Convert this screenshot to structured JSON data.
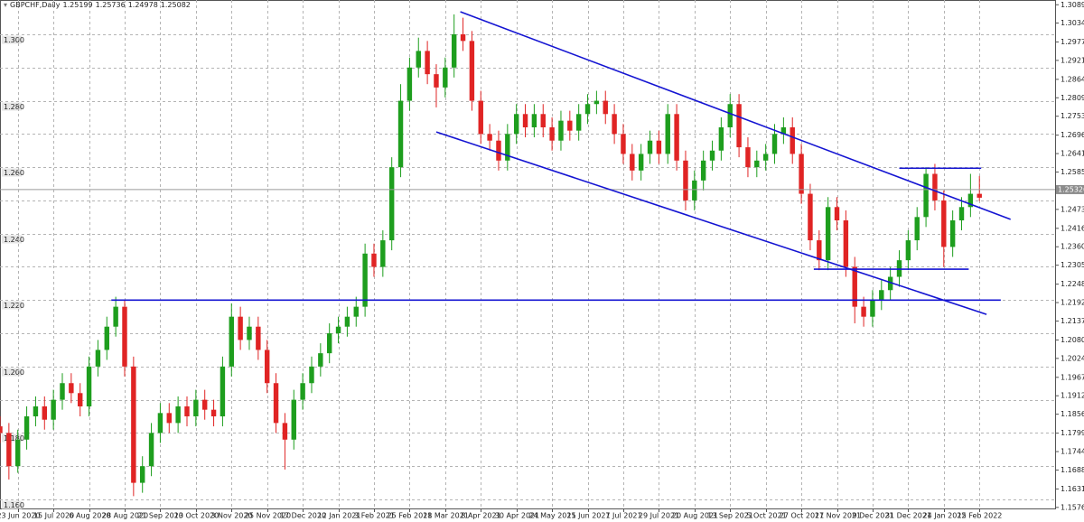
{
  "chart_data": {
    "type": "candlestick",
    "title": "GBPCHF,Daily",
    "last_ohlc": [
      1.25199,
      1.25736,
      1.24978,
      1.25082
    ],
    "open": [
      1.182,
      1.18,
      1.17,
      1.178,
      1.185,
      1.188,
      1.184,
      1.19,
      1.195,
      1.192,
      1.188,
      1.2,
      1.205,
      1.212,
      1.218,
      1.2,
      1.165,
      1.17,
      1.18,
      1.186,
      1.183,
      1.188,
      1.185,
      1.19,
      1.187,
      1.185,
      1.2,
      1.215,
      1.208,
      1.212,
      1.205,
      1.195,
      1.183,
      1.178,
      1.19,
      1.195,
      1.2,
      1.204,
      1.21,
      1.212,
      1.215,
      1.218,
      1.234,
      1.23,
      1.238,
      1.26,
      1.28,
      1.29,
      1.295,
      1.288,
      1.284,
      1.29,
      1.3,
      1.298,
      1.28,
      1.27,
      1.268,
      1.262,
      1.27,
      1.276,
      1.272,
      1.276,
      1.272,
      1.268,
      1.274,
      1.271,
      1.276,
      1.279,
      1.28,
      1.276,
      1.27,
      1.264,
      1.259,
      1.264,
      1.268,
      1.264,
      1.276,
      1.262,
      1.25,
      1.256,
      1.262,
      1.265,
      1.272,
      1.279,
      1.266,
      1.26,
      1.262,
      1.264,
      1.27,
      1.272,
      1.264,
      1.252,
      1.238,
      1.232,
      1.248,
      1.244,
      1.23,
      1.218,
      1.215,
      1.22,
      1.223,
      1.227,
      1.232,
      1.238,
      1.245,
      1.258,
      1.25,
      1.236,
      1.244,
      1.248,
      1.25199
    ],
    "high": [
      1.185,
      1.183,
      1.181,
      1.188,
      1.191,
      1.191,
      1.193,
      1.198,
      1.198,
      1.195,
      1.203,
      1.208,
      1.215,
      1.221,
      1.22,
      1.203,
      1.173,
      1.183,
      1.189,
      1.189,
      1.191,
      1.191,
      1.193,
      1.193,
      1.19,
      1.203,
      1.219,
      1.218,
      1.215,
      1.215,
      1.208,
      1.198,
      1.186,
      1.193,
      1.198,
      1.203,
      1.207,
      1.213,
      1.215,
      1.218,
      1.221,
      1.237,
      1.237,
      1.241,
      1.263,
      1.285,
      1.293,
      1.299,
      1.298,
      1.291,
      1.293,
      1.306,
      1.305,
      1.301,
      1.283,
      1.273,
      1.271,
      1.273,
      1.279,
      1.279,
      1.279,
      1.279,
      1.275,
      1.277,
      1.277,
      1.279,
      1.282,
      1.283,
      1.283,
      1.279,
      1.273,
      1.267,
      1.267,
      1.271,
      1.271,
      1.279,
      1.279,
      1.265,
      1.259,
      1.265,
      1.268,
      1.275,
      1.282,
      1.282,
      1.269,
      1.265,
      1.267,
      1.273,
      1.275,
      1.275,
      1.267,
      1.255,
      1.241,
      1.251,
      1.251,
      1.247,
      1.233,
      1.221,
      1.223,
      1.226,
      1.23,
      1.235,
      1.241,
      1.248,
      1.26,
      1.261,
      1.253,
      1.247,
      1.251,
      1.258,
      1.25736
    ],
    "low": [
      1.177,
      1.166,
      1.168,
      1.175,
      1.182,
      1.181,
      1.181,
      1.187,
      1.189,
      1.185,
      1.185,
      1.197,
      1.202,
      1.209,
      1.197,
      1.161,
      1.162,
      1.167,
      1.177,
      1.18,
      1.18,
      1.182,
      1.182,
      1.184,
      1.182,
      1.182,
      1.197,
      1.205,
      1.205,
      1.202,
      1.192,
      1.18,
      1.169,
      1.175,
      1.187,
      1.192,
      1.197,
      1.201,
      1.207,
      1.209,
      1.212,
      1.215,
      1.227,
      1.227,
      1.235,
      1.257,
      1.277,
      1.287,
      1.285,
      1.278,
      1.281,
      1.287,
      1.295,
      1.277,
      1.267,
      1.265,
      1.259,
      1.259,
      1.267,
      1.269,
      1.269,
      1.269,
      1.265,
      1.265,
      1.268,
      1.268,
      1.273,
      1.276,
      1.273,
      1.267,
      1.261,
      1.256,
      1.256,
      1.261,
      1.261,
      1.261,
      1.259,
      1.247,
      1.247,
      1.253,
      1.259,
      1.262,
      1.269,
      1.263,
      1.257,
      1.257,
      1.259,
      1.261,
      1.267,
      1.261,
      1.249,
      1.235,
      1.229,
      1.229,
      1.241,
      1.227,
      1.213,
      1.212,
      1.212,
      1.217,
      1.22,
      1.224,
      1.229,
      1.235,
      1.242,
      1.247,
      1.23,
      1.233,
      1.241,
      1.245,
      1.24978
    ],
    "close": [
      1.18,
      1.17,
      1.178,
      1.185,
      1.188,
      1.184,
      1.19,
      1.195,
      1.192,
      1.188,
      1.2,
      1.205,
      1.212,
      1.218,
      1.2,
      1.165,
      1.17,
      1.18,
      1.186,
      1.183,
      1.188,
      1.185,
      1.19,
      1.187,
      1.185,
      1.2,
      1.215,
      1.208,
      1.212,
      1.205,
      1.195,
      1.183,
      1.178,
      1.19,
      1.195,
      1.2,
      1.204,
      1.21,
      1.212,
      1.215,
      1.218,
      1.234,
      1.23,
      1.238,
      1.26,
      1.28,
      1.29,
      1.295,
      1.288,
      1.284,
      1.29,
      1.3,
      1.298,
      1.28,
      1.27,
      1.268,
      1.262,
      1.27,
      1.276,
      1.272,
      1.276,
      1.272,
      1.268,
      1.274,
      1.271,
      1.276,
      1.279,
      1.28,
      1.276,
      1.27,
      1.264,
      1.259,
      1.264,
      1.268,
      1.264,
      1.276,
      1.262,
      1.25,
      1.256,
      1.262,
      1.265,
      1.272,
      1.279,
      1.266,
      1.26,
      1.262,
      1.264,
      1.27,
      1.272,
      1.264,
      1.252,
      1.238,
      1.232,
      1.248,
      1.244,
      1.23,
      1.218,
      1.215,
      1.22,
      1.223,
      1.227,
      1.232,
      1.238,
      1.245,
      1.258,
      1.25,
      1.236,
      1.244,
      1.248,
      1.252,
      1.25082
    ],
    "up_color": "#1e9e1e",
    "down_color": "#e02424",
    "line_color": "#1414d2",
    "xlim": [
      0,
      118.5
    ],
    "ylim": [
      1.15728,
      1.31033
    ],
    "xticks": [
      {
        "value": 2,
        "label": "23 Jun 2020"
      },
      {
        "value": 6,
        "label": "15 Jul 2020"
      },
      {
        "value": 10,
        "label": "6 Aug 2020"
      },
      {
        "value": 14,
        "label": "28 Aug 2020"
      },
      {
        "value": 18,
        "label": "21 Sep 2020"
      },
      {
        "value": 22,
        "label": "13 Oct 2020"
      },
      {
        "value": 26,
        "label": "3 Nov 2020"
      },
      {
        "value": 30,
        "label": "25 Nov 2020"
      },
      {
        "value": 34,
        "label": "17 Dec 2020"
      },
      {
        "value": 38,
        "label": "12 Jan 2021"
      },
      {
        "value": 42,
        "label": "3 Feb 2021"
      },
      {
        "value": 46,
        "label": "25 Feb 2021"
      },
      {
        "value": 50,
        "label": "18 Mar 2021"
      },
      {
        "value": 54,
        "label": "8 Apr 2021"
      },
      {
        "value": 58,
        "label": "30 Apr 2021"
      },
      {
        "value": 62,
        "label": "24 May 2021"
      },
      {
        "value": 66,
        "label": "15 Jun 2021"
      },
      {
        "value": 70,
        "label": "7 Jul 2021"
      },
      {
        "value": 74,
        "label": "29 Jul 2021"
      },
      {
        "value": 78,
        "label": "20 Aug 2021"
      },
      {
        "value": 82,
        "label": "13 Sep 2021"
      },
      {
        "value": 86,
        "label": "5 Oct 2021"
      },
      {
        "value": 90,
        "label": "27 Oct 2021"
      },
      {
        "value": 94,
        "label": "17 Nov 2021"
      },
      {
        "value": 98,
        "label": "9 Dec 2021"
      },
      {
        "value": 102,
        "label": "31 Dec 2021"
      },
      {
        "value": 106,
        "label": "24 Jan 2022"
      },
      {
        "value": 110,
        "label": "15 Feb 2022"
      }
    ],
    "yticks": [
      {
        "value": 1.3089,
        "label": "1.30890"
      },
      {
        "value": 1.3034,
        "label": "1.30340"
      },
      {
        "value": 1.2977,
        "label": "1.29770"
      },
      {
        "value": 1.29215,
        "label": "1.29215"
      },
      {
        "value": 1.28645,
        "label": "1.28645"
      },
      {
        "value": 1.2809,
        "label": "1.28090"
      },
      {
        "value": 1.27535,
        "label": "1.27535"
      },
      {
        "value": 1.26965,
        "label": "1.26965"
      },
      {
        "value": 1.2641,
        "label": "1.26410"
      },
      {
        "value": 1.25855,
        "label": "1.25855"
      },
      {
        "value": 1.2473,
        "label": "1.24730"
      },
      {
        "value": 1.2416,
        "label": "1.24160"
      },
      {
        "value": 1.23605,
        "label": "1.23605"
      },
      {
        "value": 1.2305,
        "label": "1.23050"
      },
      {
        "value": 1.2248,
        "label": "1.22480"
      },
      {
        "value": 1.21925,
        "label": "1.21925"
      },
      {
        "value": 1.2137,
        "label": "1.21370"
      },
      {
        "value": 1.208,
        "label": "1.20800"
      },
      {
        "value": 1.20245,
        "label": "1.20245"
      },
      {
        "value": 1.19675,
        "label": "1.19675"
      },
      {
        "value": 1.1912,
        "label": "1.19120"
      },
      {
        "value": 1.18565,
        "label": "1.18565"
      },
      {
        "value": 1.17995,
        "label": "1.17995"
      },
      {
        "value": 1.1744,
        "label": "1.17440"
      },
      {
        "value": 1.16885,
        "label": "1.16885"
      },
      {
        "value": 1.16315,
        "label": "1.16315"
      },
      {
        "value": 1.1576,
        "label": "1.15760"
      }
    ],
    "left_yticks": [
      {
        "value": 1.3,
        "label": "1.300"
      },
      {
        "value": 1.28,
        "label": "1.280"
      },
      {
        "value": 1.26,
        "label": "1.260"
      },
      {
        "value": 1.24,
        "label": "1.240"
      },
      {
        "value": 1.22,
        "label": "1.220"
      },
      {
        "value": 1.2,
        "label": "1.200"
      },
      {
        "value": 1.18,
        "label": "1.180"
      },
      {
        "value": 1.16,
        "label": "1.160"
      }
    ],
    "minor_yticks": [
      1.29,
      1.27,
      1.25,
      1.23,
      1.21,
      1.19,
      1.17
    ],
    "grid": true,
    "current_price": 1.25326,
    "lines": [
      {
        "x": [
          51.7,
          113.5
        ],
        "y": [
          1.3068,
          1.2443
        ]
      },
      {
        "x": [
          49,
          110.8
        ],
        "y": [
          1.2706,
          1.2157
        ]
      },
      {
        "x": [
          12.5,
          112.4
        ],
        "y": [
          1.22,
          1.22
        ]
      },
      {
        "x": [
          101,
          110.2
        ],
        "y": [
          1.2597,
          1.2597
        ]
      },
      {
        "x": [
          91.4,
          108.8
        ],
        "y": [
          1.2293,
          1.2293
        ]
      }
    ]
  }
}
